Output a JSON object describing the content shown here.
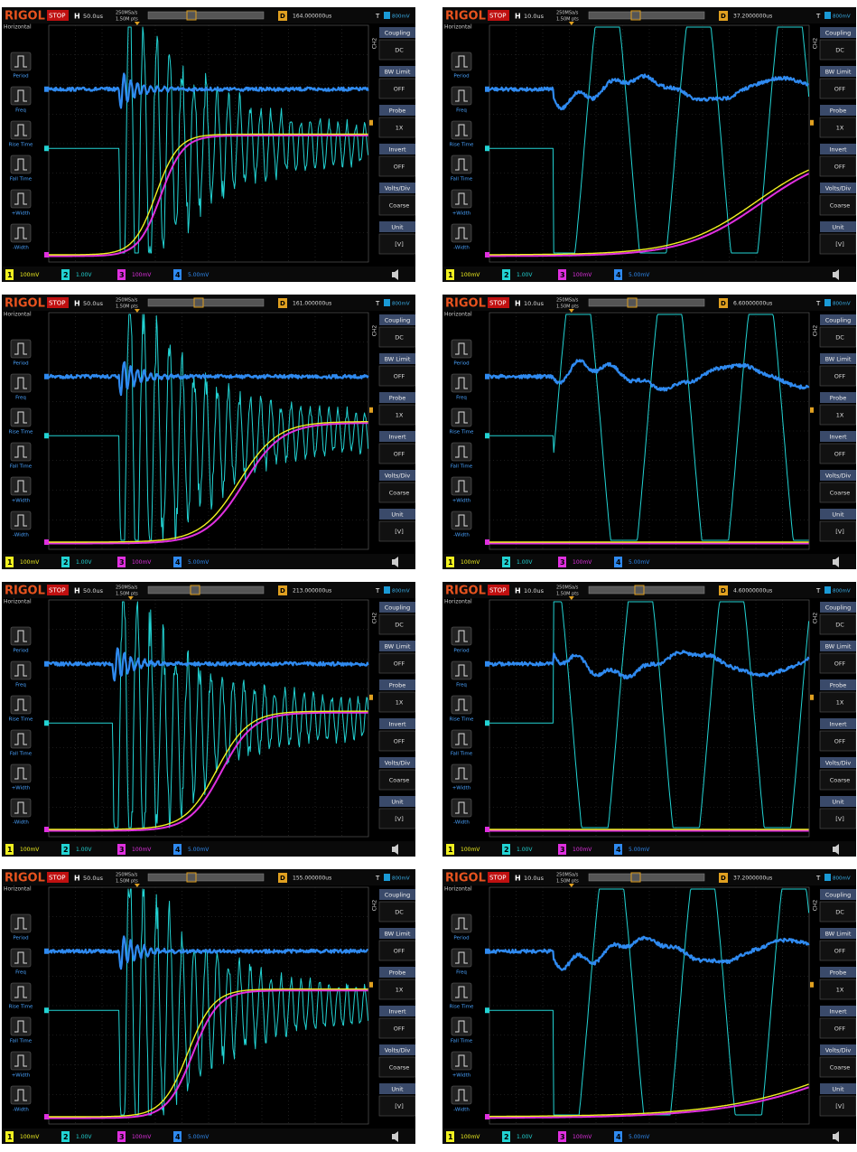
{
  "common": {
    "brand": "RIGOL",
    "status": "STOP",
    "h_label": "H",
    "d_label": "D",
    "t_label": "T",
    "channel_name": "CH2",
    "left_menu": [
      "Horizontal",
      "Period",
      "Freq",
      "Rise Time",
      "Fall Time",
      "+Width",
      "-Width"
    ],
    "right_menu": [
      {
        "label": "Coupling",
        "value": "DC"
      },
      {
        "label": "BW Limit",
        "value": "OFF"
      },
      {
        "label": "Probe",
        "value": "1X"
      },
      {
        "label": "Invert",
        "value": "OFF"
      },
      {
        "label": "Volts/Div",
        "value": "Coarse"
      },
      {
        "label": "Unit",
        "value": "[V]"
      }
    ],
    "channels": [
      {
        "number": "1",
        "scale": "100mV"
      },
      {
        "number": "2",
        "scale": "1.00V"
      },
      {
        "number": "3",
        "scale": "100mV"
      },
      {
        "number": "4",
        "scale": "5.00mV"
      }
    ]
  },
  "screens": [
    {
      "timebase": "50.0us",
      "sample_rate": "250MSa/s",
      "memory_depth": "1.50M pts",
      "delay": "164.000000us",
      "trigger": "800mV"
    },
    {
      "timebase": "10.0us",
      "sample_rate": "250MSa/s",
      "memory_depth": "1.50M pts",
      "delay": "37.2000000us",
      "trigger": "800mV"
    },
    {
      "timebase": "50.0us",
      "sample_rate": "250MSa/s",
      "memory_depth": "1.50M pts",
      "delay": "161.000000us",
      "trigger": "800mV"
    },
    {
      "timebase": "10.0us",
      "sample_rate": "250MSa/s",
      "memory_depth": "1.50M pts",
      "delay": "6.60000000us",
      "trigger": "800mV"
    },
    {
      "timebase": "50.0us",
      "sample_rate": "250MSa/s",
      "memory_depth": "1.50M pts",
      "delay": "213.000000us",
      "trigger": "800mV"
    },
    {
      "timebase": "10.0us",
      "sample_rate": "250MSa/s",
      "memory_depth": "1.50M pts",
      "delay": "4.60000000us",
      "trigger": "800mV"
    },
    {
      "timebase": "50.0us",
      "sample_rate": "250MSa/s",
      "memory_depth": "1.50M pts",
      "delay": "155.000000us",
      "trigger": "800mV"
    },
    {
      "timebase": "10.0us",
      "sample_rate": "250MSa/s",
      "memory_depth": "1.50M pts",
      "delay": "37.2000000us",
      "trigger": "800mV"
    }
  ]
}
